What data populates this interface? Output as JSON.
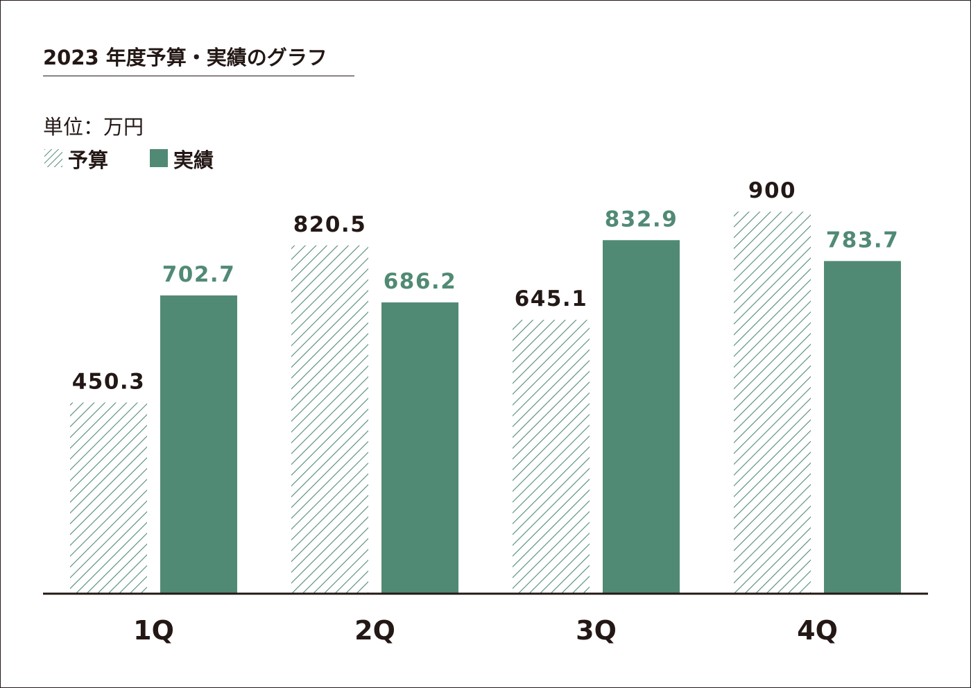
{
  "chart_data": {
    "type": "bar",
    "title": "2023 年度予算・実績のグラフ",
    "unit_label": "単位：万円",
    "categories": [
      "1Q",
      "2Q",
      "3Q",
      "4Q"
    ],
    "series": [
      {
        "name": "予算",
        "values": [
          450.3,
          820.5,
          645.1,
          900
        ],
        "labels": [
          "450.3",
          "820.5",
          "645.1",
          "900"
        ],
        "pattern": "hatched",
        "color": "#518a74"
      },
      {
        "name": "実績",
        "values": [
          702.7,
          686.2,
          832.9,
          783.7
        ],
        "labels": [
          "702.7",
          "686.2",
          "832.9",
          "783.7"
        ],
        "pattern": "solid",
        "color": "#518a74"
      }
    ],
    "ylim": [
      0,
      1000
    ],
    "grid": false,
    "legend": "top-left",
    "colors": {
      "text": "#231815",
      "accent": "#518a74",
      "background": "#ffffff"
    }
  }
}
